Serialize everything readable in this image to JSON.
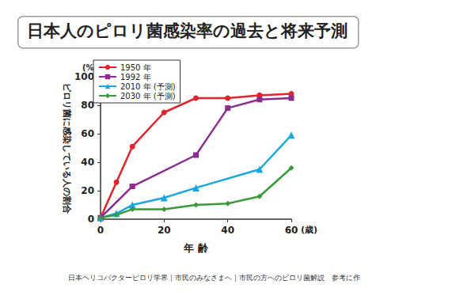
{
  "chart_data": {
    "type": "line",
    "title": "日本人のピロリ菌感染率の過去と将来予測",
    "x_label": "年 齢",
    "x_unit": "(歳)",
    "y_label": "ピロリ菌に感染している人の割合",
    "y_unit": "(%)",
    "source": "日本ヘリコバクターピロリ学界｜市民のみなさまへ｜市民の方へのピロリ菌解説　参考に作",
    "xlim": [
      0,
      60
    ],
    "xticks": [
      0,
      20,
      40,
      60
    ],
    "ylim": [
      0,
      100
    ],
    "yticks": [
      0,
      20,
      40,
      60,
      80,
      100
    ],
    "grid": false,
    "legend": "upper left",
    "series": [
      {
        "name": "1950 年",
        "color": "#e0242b",
        "marker": "circle",
        "x": [
          0,
          5,
          10,
          20,
          30,
          40,
          50,
          60
        ],
        "values": [
          1,
          26,
          51,
          75,
          85,
          85,
          87,
          88
        ]
      },
      {
        "name": "1992 年",
        "color": "#8b2a8f",
        "marker": "square",
        "x": [
          0,
          10,
          30,
          40,
          50,
          60
        ],
        "values": [
          1,
          23,
          45,
          78,
          84,
          85
        ]
      },
      {
        "name": "2010 年 (予測)",
        "color": "#1aa7e0",
        "marker": "triangle",
        "x": [
          0,
          5,
          10,
          20,
          30,
          50,
          60
        ],
        "values": [
          1,
          4,
          10,
          15,
          22,
          35,
          59
        ]
      },
      {
        "name": "2030 年 (予測)",
        "color": "#3a9a3a",
        "marker": "diamond",
        "x": [
          0,
          5,
          10,
          20,
          30,
          40,
          50,
          60
        ],
        "values": [
          1,
          3,
          7,
          7,
          10,
          11,
          16,
          36
        ]
      }
    ]
  }
}
